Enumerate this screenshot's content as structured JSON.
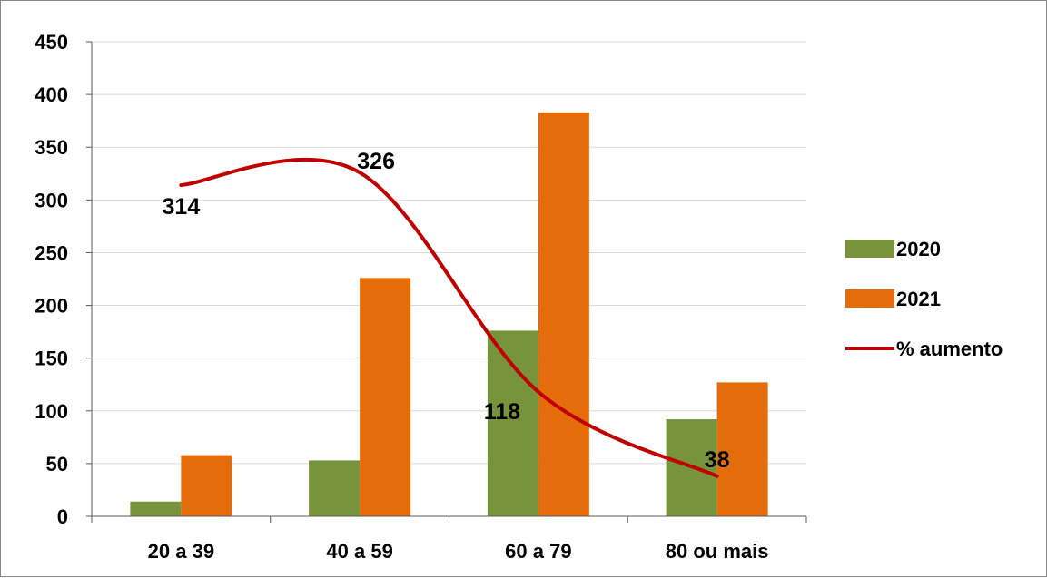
{
  "chart_data": {
    "type": "bar",
    "categories": [
      "20 a 39",
      "40 a 59",
      "60 a 79",
      "80 ou mais"
    ],
    "series": [
      {
        "name": "2020",
        "kind": "bar",
        "color": "#77933c",
        "values": [
          14,
          53,
          176,
          92
        ]
      },
      {
        "name": "2021",
        "kind": "bar",
        "color": "#e46c0a",
        "values": [
          58,
          226,
          383,
          127
        ]
      },
      {
        "name": "% aumento",
        "kind": "line",
        "smooth": true,
        "color": "#c00000",
        "values": [
          314,
          326,
          118,
          38
        ]
      }
    ],
    "ylim": [
      0,
      450
    ],
    "yticks": [
      0,
      50,
      100,
      150,
      200,
      250,
      300,
      350,
      400,
      450
    ],
    "grid": true,
    "legend_position": "right"
  }
}
